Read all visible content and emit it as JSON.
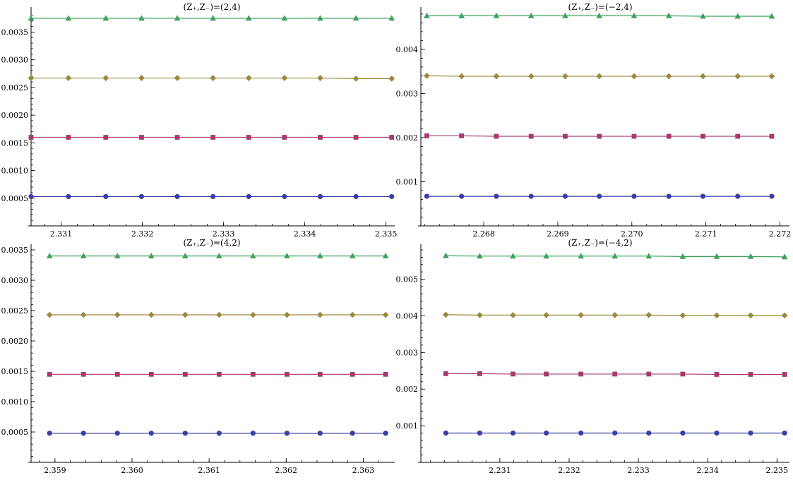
{
  "colors": {
    "series1": "#3a3ea5",
    "series2": "#a63a6e",
    "series3": "#9a8a3e",
    "series4": "#3da35c"
  },
  "chart_data": [
    {
      "type": "line",
      "title": "(Z₊,Z₋)=(2,4)",
      "x": [
        2.33063,
        2.33109,
        2.33155,
        2.33199,
        2.33243,
        2.33287,
        2.33331,
        2.33375,
        2.33419,
        2.33463,
        2.33507
      ],
      "xlim": [
        2.33063,
        2.33509
      ],
      "ylim": [
        0,
        0.00385
      ],
      "xticks": [
        "2.331",
        "2.332",
        "2.333",
        "2.334",
        "2.335"
      ],
      "xtick_values": [
        2.331,
        2.332,
        2.333,
        2.334,
        2.335
      ],
      "yticks": [
        "0.0005",
        "0.0010",
        "0.0015",
        "0.0020",
        "0.0025",
        "0.0030",
        "0.0035"
      ],
      "ytick_values": [
        0.0005,
        0.001,
        0.0015,
        0.002,
        0.0025,
        0.003,
        0.0035
      ],
      "series": [
        {
          "marker": "circle",
          "values": [
            0.00053,
            0.00053,
            0.00053,
            0.00053,
            0.00053,
            0.00053,
            0.00053,
            0.00053,
            0.00053,
            0.00053,
            0.00053
          ]
        },
        {
          "marker": "square",
          "values": [
            0.0016,
            0.0016,
            0.0016,
            0.0016,
            0.0016,
            0.0016,
            0.0016,
            0.0016,
            0.0016,
            0.0016,
            0.0016
          ]
        },
        {
          "marker": "diamond",
          "values": [
            0.00267,
            0.00267,
            0.00267,
            0.00267,
            0.00267,
            0.00267,
            0.00267,
            0.00267,
            0.00267,
            0.00266,
            0.00266
          ]
        },
        {
          "marker": "triangle",
          "values": [
            0.00375,
            0.00375,
            0.00375,
            0.00375,
            0.00375,
            0.00375,
            0.00375,
            0.00375,
            0.00375,
            0.00375,
            0.00375
          ]
        }
      ]
    },
    {
      "type": "line",
      "title": "(Z₊,Z₋)=(−2,4)",
      "x": [
        2.26723,
        2.2677,
        2.26817,
        2.26864,
        2.2691,
        2.26956,
        2.27003,
        2.2705,
        2.27096,
        2.27143,
        2.27189
      ],
      "xlim": [
        2.26715,
        2.27211
      ],
      "ylim": [
        0,
        0.00483
      ],
      "xticks": [
        "2.268",
        "2.269",
        "2.270",
        "2.271",
        "2.272"
      ],
      "xtick_values": [
        2.268,
        2.269,
        2.27,
        2.271,
        2.272
      ],
      "yticks": [
        "0.001",
        "0.002",
        "0.003",
        "0.004"
      ],
      "ytick_values": [
        0.001,
        0.002,
        0.003,
        0.004
      ],
      "series": [
        {
          "marker": "circle",
          "values": [
            0.00067,
            0.00067,
            0.00067,
            0.00067,
            0.00067,
            0.00067,
            0.00067,
            0.00067,
            0.00067,
            0.00067,
            0.00067
          ]
        },
        {
          "marker": "square",
          "values": [
            0.00204,
            0.00204,
            0.00203,
            0.00203,
            0.00203,
            0.00203,
            0.00203,
            0.00203,
            0.00203,
            0.00203,
            0.00203
          ]
        },
        {
          "marker": "diamond",
          "values": [
            0.0034,
            0.00339,
            0.00339,
            0.00339,
            0.00339,
            0.00339,
            0.00339,
            0.00339,
            0.00339,
            0.00339,
            0.00339
          ]
        },
        {
          "marker": "triangle",
          "values": [
            0.00476,
            0.00476,
            0.00476,
            0.00476,
            0.00476,
            0.00476,
            0.00476,
            0.00476,
            0.00475,
            0.00475,
            0.00475
          ]
        }
      ]
    },
    {
      "type": "line",
      "title": "(Z₊,Z₋)=(4,2)",
      "x": [
        2.35893,
        2.35937,
        2.35981,
        2.36025,
        2.36069,
        2.36113,
        2.36157,
        2.36201,
        2.36244,
        2.36286,
        2.36329
      ],
      "xlim": [
        2.35869,
        2.36339
      ],
      "ylim": [
        0,
        0.0035
      ],
      "xticks": [
        "2.359",
        "2.360",
        "2.361",
        "2.362",
        "2.363"
      ],
      "xtick_values": [
        2.359,
        2.36,
        2.361,
        2.362,
        2.363
      ],
      "yticks": [
        "0.0005",
        "0.0010",
        "0.0015",
        "0.0020",
        "0.0025",
        "0.0030",
        "0.0035"
      ],
      "ytick_values": [
        0.0005,
        0.001,
        0.0015,
        0.002,
        0.0025,
        0.003,
        0.0035
      ],
      "series": [
        {
          "marker": "circle",
          "values": [
            0.00048,
            0.00048,
            0.00048,
            0.00048,
            0.00048,
            0.00048,
            0.00048,
            0.00048,
            0.00048,
            0.00048,
            0.00048
          ]
        },
        {
          "marker": "square",
          "values": [
            0.00145,
            0.00145,
            0.00145,
            0.00145,
            0.00145,
            0.00145,
            0.00145,
            0.00145,
            0.00145,
            0.00145,
            0.00145
          ]
        },
        {
          "marker": "diamond",
          "values": [
            0.00243,
            0.00243,
            0.00243,
            0.00243,
            0.00243,
            0.00243,
            0.00243,
            0.00243,
            0.00243,
            0.00243,
            0.00243
          ]
        },
        {
          "marker": "triangle",
          "values": [
            0.0034,
            0.0034,
            0.0034,
            0.0034,
            0.0034,
            0.0034,
            0.0034,
            0.0034,
            0.0034,
            0.0034,
            0.0034
          ]
        }
      ]
    },
    {
      "type": "line",
      "title": "(Z₊,Z₋)=(−4,2)",
      "x": [
        2.23022,
        2.23071,
        2.23119,
        2.23167,
        2.23217,
        2.23266,
        2.23315,
        2.23364,
        2.23413,
        2.23462,
        2.23511
      ],
      "xlim": [
        2.22986,
        2.23516
      ],
      "ylim": [
        0,
        0.0058
      ],
      "xticks": [
        "2.231",
        "2.232",
        "2.233",
        "2.234",
        "2.235"
      ],
      "xtick_values": [
        2.231,
        2.232,
        2.233,
        2.234,
        2.235
      ],
      "yticks": [
        "0.001",
        "0.002",
        "0.003",
        "0.004",
        "0.005"
      ],
      "ytick_values": [
        0.001,
        0.002,
        0.003,
        0.004,
        0.005
      ],
      "series": [
        {
          "marker": "circle",
          "values": [
            0.0008,
            0.0008,
            0.0008,
            0.0008,
            0.0008,
            0.0008,
            0.0008,
            0.0008,
            0.0008,
            0.0008,
            0.0008
          ]
        },
        {
          "marker": "square",
          "values": [
            0.00242,
            0.00242,
            0.00241,
            0.00241,
            0.00241,
            0.00241,
            0.00241,
            0.00241,
            0.0024,
            0.0024,
            0.0024
          ]
        },
        {
          "marker": "diamond",
          "values": [
            0.00403,
            0.00402,
            0.00402,
            0.00402,
            0.00402,
            0.00402,
            0.00402,
            0.00401,
            0.00401,
            0.00401,
            0.00401
          ]
        },
        {
          "marker": "triangle",
          "values": [
            0.00564,
            0.00563,
            0.00563,
            0.00563,
            0.00563,
            0.00563,
            0.00563,
            0.00562,
            0.00562,
            0.00562,
            0.00561
          ]
        }
      ]
    }
  ]
}
